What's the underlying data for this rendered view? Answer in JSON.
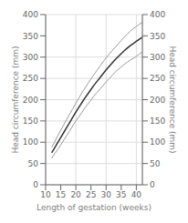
{
  "chart_data": {
    "type": "line",
    "xlabel": "Length of gestation (weeks)",
    "ylabel": "Head circumference (mm)",
    "y2label": "Head circumference (mm)",
    "x": [
      12,
      13,
      14,
      15,
      16,
      17,
      18,
      19,
      20,
      21,
      22,
      23,
      24,
      25,
      26,
      27,
      28,
      29,
      30,
      31,
      32,
      33,
      34,
      35,
      36,
      37,
      38,
      39,
      40,
      41,
      42
    ],
    "series": [
      {
        "color": "#999999",
        "values": [
          88,
          101,
          115,
          128,
          141,
          154,
          167,
          179,
          192,
          204,
          216,
          227,
          238,
          249,
          259,
          269,
          279,
          289,
          298,
          307,
          315,
          323,
          331,
          339,
          347,
          354,
          361,
          367,
          372,
          377,
          382
        ]
      },
      {
        "color": "#333333",
        "values": [
          75,
          87,
          99,
          111,
          123,
          135,
          147,
          159,
          171,
          182,
          193,
          204,
          214,
          224,
          234,
          243,
          252,
          261,
          270,
          278,
          286,
          294,
          301,
          308,
          315,
          321,
          327,
          332,
          337,
          342,
          347
        ]
      },
      {
        "color": "#999999",
        "values": [
          62,
          73,
          83,
          94,
          105,
          116,
          127,
          139,
          150,
          160,
          170,
          181,
          190,
          199,
          209,
          217,
          225,
          233,
          242,
          249,
          257,
          265,
          271,
          277,
          283,
          288,
          293,
          297,
          302,
          307,
          312
        ]
      }
    ],
    "xlim": [
      10,
      42
    ],
    "xticks": [
      10,
      15,
      20,
      25,
      30,
      35,
      40
    ],
    "ylim": [
      0,
      400
    ],
    "yticks": [
      0,
      50,
      100,
      150,
      200,
      250,
      300,
      350,
      400
    ],
    "y2lim": [
      0,
      400
    ],
    "y2ticks": [
      0,
      50,
      100,
      150,
      200,
      250,
      300,
      350,
      400
    ],
    "grid": true
  }
}
